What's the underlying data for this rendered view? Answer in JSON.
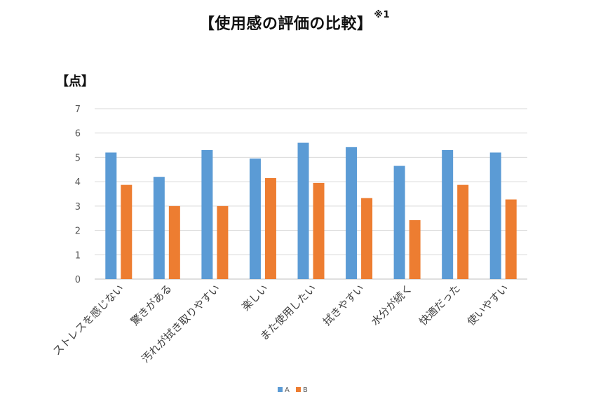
{
  "chart_data": {
    "type": "bar",
    "title": "【使用感の評価の比較】",
    "title_note": "※1",
    "ylabel": "【点】",
    "ylim": [
      0,
      7
    ],
    "yticks": [
      0,
      1,
      2,
      3,
      4,
      5,
      6,
      7
    ],
    "grid": true,
    "legend_position": "bottom",
    "categories": [
      "ストレスを感じない",
      "驚きがある",
      "汚れが拭き取りやすい",
      "楽しい",
      "また使用したい",
      "拭きやすい",
      "水分が続く",
      "快適だった",
      "使いやすい"
    ],
    "series": [
      {
        "name": "A",
        "color": "#5B9BD5",
        "values": [
          5.2,
          4.2,
          5.3,
          4.95,
          5.6,
          5.42,
          4.65,
          5.3,
          5.2
        ]
      },
      {
        "name": "B",
        "color": "#ED7D31",
        "values": [
          3.87,
          3.0,
          3.0,
          4.15,
          3.95,
          3.33,
          2.42,
          3.87,
          3.27
        ]
      }
    ]
  }
}
